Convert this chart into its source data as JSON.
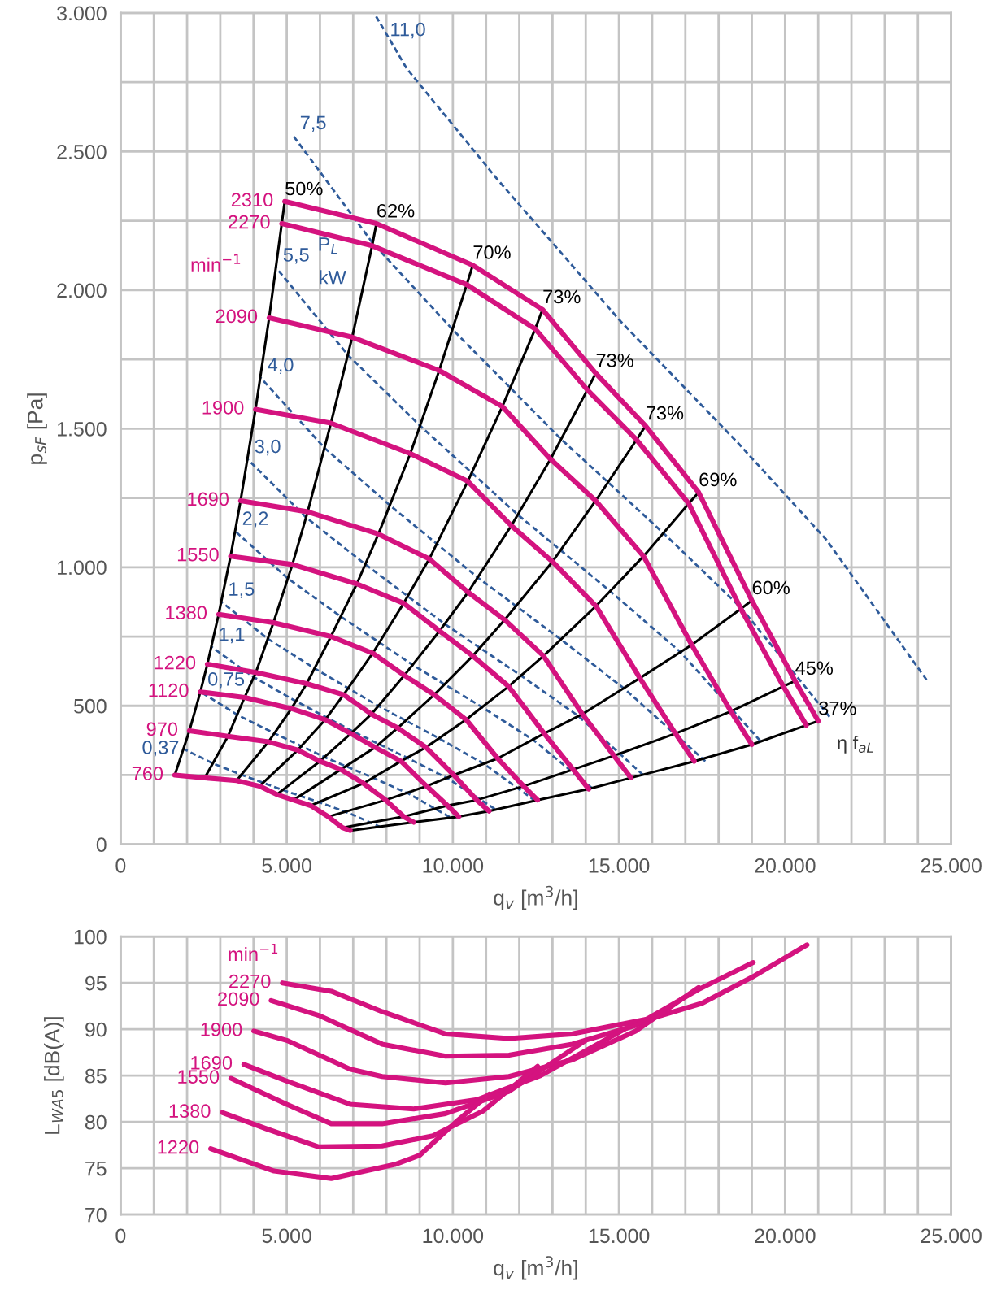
{
  "chart_data": [
    {
      "type": "line",
      "xlabel": "q$_{v}$ [m$^{3}$/h]",
      "ylabel": "p$_{sF}$ [Pa]",
      "xlim": [
        0,
        25000
      ],
      "ylim": [
        0,
        3000
      ],
      "xticks": [
        {
          "value": 0,
          "label": "0"
        },
        {
          "value": 1000,
          "label": null
        },
        {
          "value": 2000,
          "label": null
        },
        {
          "value": 3000,
          "label": null
        },
        {
          "value": 4000,
          "label": null
        },
        {
          "value": 5000,
          "label": "5.000"
        },
        {
          "value": 6000,
          "label": null
        },
        {
          "value": 7000,
          "label": null
        },
        {
          "value": 8000,
          "label": null
        },
        {
          "value": 9000,
          "label": null
        },
        {
          "value": 10000,
          "label": "10.000"
        },
        {
          "value": 11000,
          "label": null
        },
        {
          "value": 12000,
          "label": null
        },
        {
          "value": 13000,
          "label": null
        },
        {
          "value": 14000,
          "label": null
        },
        {
          "value": 15000,
          "label": "15.000"
        },
        {
          "value": 16000,
          "label": null
        },
        {
          "value": 17000,
          "label": null
        },
        {
          "value": 18000,
          "label": null
        },
        {
          "value": 19000,
          "label": null
        },
        {
          "value": 20000,
          "label": "20.000"
        },
        {
          "value": 21000,
          "label": null
        },
        {
          "value": 22000,
          "label": null
        },
        {
          "value": 23000,
          "label": null
        },
        {
          "value": 24000,
          "label": null
        },
        {
          "value": 25000,
          "label": "25.000"
        }
      ],
      "yticks": [
        {
          "value": 0,
          "label": "0"
        },
        {
          "value": 250,
          "label": null
        },
        {
          "value": 500,
          "label": "500"
        },
        {
          "value": 750,
          "label": null
        },
        {
          "value": 1000,
          "label": "1.000"
        },
        {
          "value": 1250,
          "label": null
        },
        {
          "value": 1500,
          "label": "1.500"
        },
        {
          "value": 1750,
          "label": null
        },
        {
          "value": 2000,
          "label": "2.000"
        },
        {
          "value": 2250,
          "label": null
        },
        {
          "value": 2500,
          "label": "2.500"
        },
        {
          "value": 2750,
          "label": null
        },
        {
          "value": 3000,
          "label": "3.000"
        }
      ],
      "grid": true,
      "annotations": [
        "min$^{−1}$",
        "P$_{L}$",
        "kW",
        "η f$_{aL}$"
      ],
      "series": [
        {
          "name": "11,0",
          "color": "#2f5b9a",
          "line_style": "dashed",
          "x": [
            24260,
            21240,
            18580,
            15060,
            11360,
            8610,
            7630
          ],
          "values": [
            594,
            1100,
            1449,
            1886,
            2397,
            2800,
            3000
          ]
        },
        {
          "name": "7,5",
          "color": "#2f5b9a",
          "line_style": "dashed",
          "x": [
            21340,
            18690,
            16350,
            13260,
            9990,
            7580,
            5190
          ],
          "values": [
            460,
            852,
            1122,
            1462,
            1858,
            2171,
            2558
          ]
        },
        {
          "name": "5,5",
          "color": "#2f5b9a",
          "line_style": "dashed",
          "x": [
            19250,
            16860,
            14750,
            11960,
            9010,
            6840,
            4680
          ],
          "values": [
            374,
            693,
            912,
            1189,
            1511,
            1766,
            2081
          ]
        },
        {
          "name": "4,0",
          "color": "#2f5b9a",
          "line_style": "dashed",
          "x": [
            17600,
            15170,
            13270,
            10760,
            8110,
            6150,
            4210
          ],
          "values": [
            300,
            561,
            738,
            962,
            1223,
            1429,
            1684
          ]
        },
        {
          "name": "3,0",
          "color": "#2f5b9a",
          "line_style": "dashed",
          "x": [
            15730,
            13780,
            12050,
            9770,
            7370,
            5590,
            3820
          ],
          "values": [
            250,
            463,
            609,
            794,
            1010,
            1179,
            1390
          ]
        },
        {
          "name": "2,2",
          "color": "#2f5b9a",
          "line_style": "dashed",
          "x": [
            14190,
            12430,
            10870,
            8810,
            6640,
            5040,
            3450
          ],
          "values": [
            203,
            376,
            496,
            646,
            821,
            959,
            1130
          ]
        },
        {
          "name": "1,5",
          "color": "#2f5b9a",
          "line_style": "dashed",
          "x": [
            12480,
            10930,
            9560,
            7750,
            5840,
            4430,
            3030
          ],
          "values": [
            157,
            291,
            384,
            500,
            635,
            742,
            875
          ]
        },
        {
          "name": "1,1",
          "color": "#2f5b9a",
          "line_style": "dashed",
          "x": [
            11260,
            9860,
            8630,
            7000,
            5270,
            4000,
            2740
          ],
          "values": [
            128,
            237,
            312,
            407,
            517,
            604,
            712
          ]
        },
        {
          "name": "0,75",
          "color": "#2f5b9a",
          "line_style": "dashed",
          "x": [
            9900,
            8670,
            7580,
            6150,
            4640,
            3520,
            2410
          ],
          "values": [
            99,
            183,
            241,
            314,
            400,
            467,
            550
          ]
        },
        {
          "name": "0,37",
          "color": "#2f5b9a",
          "line_style": "dashed",
          "x": [
            7830,
            6850,
            6000,
            4860,
            3660,
            2780,
            1900
          ],
          "values": [
            62,
            114,
            151,
            197,
            250,
            292,
            344
          ]
        },
        {
          "name": "50%",
          "color": "#000000",
          "line_style": "solid",
          "x": [
            1630,
            2070,
            2400,
            2610,
            2950,
            3310,
            3610,
            4060,
            4470,
            4850,
            4940
          ],
          "values": [
            250,
            410,
            550,
            650,
            830,
            1040,
            1240,
            1570,
            1900,
            2240,
            2320
          ]
        },
        {
          "name": "62%",
          "color": "#000000",
          "line_style": "solid",
          "x": [
            2530,
            3230,
            3730,
            4070,
            4600,
            5170,
            5630,
            6330,
            6970,
            7570,
            7700
          ],
          "values": [
            240,
            390,
            530,
            620,
            800,
            1010,
            1200,
            1520,
            1830,
            2160,
            2240
          ]
        },
        {
          "name": "70%",
          "color": "#000000",
          "line_style": "solid",
          "x": [
            3490,
            4450,
            5140,
            5600,
            6330,
            7110,
            7760,
            8720,
            9590,
            10420,
            10600
          ],
          "values": [
            230,
            370,
            490,
            580,
            750,
            940,
            1120,
            1410,
            1710,
            2020,
            2090
          ]
        },
        {
          "name": "73%",
          "color": "#000000",
          "line_style": "solid",
          "x": [
            4180,
            5330,
            6160,
            6710,
            7590,
            8520,
            9290,
            10450,
            11490,
            12480,
            12700
          ],
          "values": [
            210,
            340,
            450,
            540,
            690,
            870,
            1030,
            1310,
            1580,
            1860,
            1930
          ]
        },
        {
          "name": "73%",
          "color": "#000000",
          "line_style": "solid",
          "x": [
            4700,
            6000,
            6930,
            7550,
            8540,
            9600,
            10460,
            11760,
            12940,
            14050,
            14300
          ],
          "values": [
            180,
            300,
            400,
            470,
            610,
            770,
            910,
            1150,
            1390,
            1640,
            1700
          ]
        },
        {
          "name": "73%",
          "color": "#000000",
          "line_style": "solid",
          "x": [
            5200,
            6630,
            7660,
            8340,
            9440,
            10600,
            11560,
            13000,
            14300,
            15530,
            15800
          ],
          "values": [
            160,
            270,
            350,
            420,
            540,
            680,
            810,
            1020,
            1240,
            1460,
            1510
          ]
        },
        {
          "name": "69%",
          "color": "#000000",
          "line_style": "solid",
          "x": [
            5720,
            7310,
            8440,
            9190,
            10400,
            11680,
            12730,
            14310,
            15740,
            17100,
            17400
          ],
          "values": [
            140,
            220,
            300,
            350,
            450,
            570,
            680,
            860,
            1040,
            1230,
            1270
          ]
        },
        {
          "name": "60%",
          "color": "#000000",
          "line_style": "solid",
          "x": [
            6250,
            7980,
            9210,
            10030,
            11350,
            12750,
            13900,
            15630,
            17190,
            18670,
            19000
          ],
          "values": [
            100,
            160,
            210,
            250,
            310,
            400,
            470,
            600,
            720,
            850,
            880
          ]
        },
        {
          "name": "45%",
          "color": "#000000",
          "line_style": "solid",
          "x": [
            6680,
            8520,
            9840,
            10720,
            12130,
            13620,
            14850,
            16700,
            18370,
            19950,
            20300
          ],
          "values": [
            60,
            100,
            140,
            160,
            210,
            270,
            320,
            400,
            480,
            570,
            590
          ]
        },
        {
          "name": "37%",
          "color": "#000000",
          "line_style": "solid",
          "x": [
            6910,
            8820,
            10180,
            11090,
            12550,
            14090,
            15360,
            17270,
            19000,
            20640,
            21000
          ],
          "values": [
            50,
            80,
            100,
            120,
            160,
            200,
            240,
            300,
            360,
            430,
            445
          ]
        },
        {
          "name": "2310",
          "color": "#d4137f",
          "line_style": "solid",
          "x": [
            21000,
            20300,
            19000,
            17400,
            15800,
            14300,
            12700,
            10600,
            7700,
            4940
          ],
          "values": [
            445,
            590,
            880,
            1270,
            1510,
            1700,
            1930,
            2090,
            2240,
            2320
          ]
        },
        {
          "name": "2270",
          "color": "#d4137f",
          "line_style": "solid",
          "x": [
            20640,
            19950,
            18670,
            17100,
            15530,
            14050,
            12480,
            10420,
            7570,
            4850
          ],
          "values": [
            430,
            570,
            850,
            1230,
            1460,
            1640,
            1860,
            2020,
            2160,
            2240
          ]
        },
        {
          "name": "2090",
          "color": "#d4137f",
          "line_style": "solid",
          "x": [
            19000,
            18370,
            17190,
            15740,
            14300,
            12940,
            11490,
            9590,
            6970,
            4470
          ],
          "values": [
            360,
            480,
            720,
            1040,
            1240,
            1390,
            1580,
            1710,
            1830,
            1900
          ]
        },
        {
          "name": "1900",
          "color": "#d4137f",
          "line_style": "solid",
          "x": [
            17270,
            16700,
            15630,
            14310,
            13000,
            11760,
            10450,
            8720,
            6330,
            4060
          ],
          "values": [
            300,
            400,
            600,
            860,
            1020,
            1150,
            1310,
            1410,
            1520,
            1570
          ]
        },
        {
          "name": "1690",
          "color": "#d4137f",
          "line_style": "solid",
          "x": [
            15360,
            14850,
            13900,
            12730,
            11560,
            10460,
            9290,
            7760,
            5630,
            3610
          ],
          "values": [
            240,
            320,
            470,
            680,
            810,
            910,
            1030,
            1120,
            1200,
            1240
          ]
        },
        {
          "name": "1550",
          "color": "#d4137f",
          "line_style": "solid",
          "x": [
            14090,
            13620,
            12750,
            11680,
            10600,
            9600,
            8520,
            7110,
            5170,
            3310
          ],
          "values": [
            200,
            270,
            400,
            570,
            680,
            770,
            870,
            940,
            1010,
            1040
          ]
        },
        {
          "name": "1380",
          "color": "#d4137f",
          "line_style": "solid",
          "x": [
            12550,
            12130,
            11350,
            10400,
            9440,
            8540,
            7590,
            6330,
            4600,
            2950
          ],
          "values": [
            160,
            210,
            310,
            450,
            540,
            610,
            690,
            750,
            800,
            830
          ]
        },
        {
          "name": "1220",
          "color": "#d4137f",
          "line_style": "solid",
          "x": [
            11090,
            10720,
            10030,
            9190,
            8340,
            7550,
            6710,
            5600,
            4070,
            2610
          ],
          "values": [
            120,
            160,
            250,
            350,
            420,
            470,
            540,
            580,
            620,
            650
          ]
        },
        {
          "name": "1120",
          "color": "#d4137f",
          "line_style": "solid",
          "x": [
            10180,
            9840,
            9210,
            8440,
            7660,
            6930,
            6160,
            5140,
            3730,
            2400
          ],
          "values": [
            100,
            140,
            210,
            300,
            350,
            400,
            450,
            490,
            530,
            550
          ]
        },
        {
          "name": "970",
          "color": "#d4137f",
          "line_style": "solid",
          "x": [
            8820,
            8520,
            7980,
            7310,
            6630,
            6000,
            5330,
            4450,
            3230,
            2070
          ],
          "values": [
            80,
            100,
            160,
            220,
            270,
            300,
            340,
            370,
            390,
            410
          ]
        },
        {
          "name": "760",
          "color": "#d4137f",
          "line_style": "solid",
          "x": [
            6910,
            6680,
            6250,
            5720,
            5200,
            4700,
            4180,
            3490,
            2530,
            1630
          ],
          "values": [
            50,
            60,
            100,
            140,
            160,
            180,
            210,
            230,
            240,
            250
          ]
        }
      ]
    },
    {
      "type": "line",
      "xlabel": "q$_{v}$ [m$^{3}$/h]",
      "ylabel": "L$_{WA5}$ [dB(A)]",
      "xlim": [
        0,
        25000
      ],
      "ylim": [
        70,
        100
      ],
      "xticks": [
        {
          "value": 0,
          "label": "0"
        },
        {
          "value": 1000,
          "label": null
        },
        {
          "value": 2000,
          "label": null
        },
        {
          "value": 3000,
          "label": null
        },
        {
          "value": 4000,
          "label": null
        },
        {
          "value": 5000,
          "label": "5.000"
        },
        {
          "value": 6000,
          "label": null
        },
        {
          "value": 7000,
          "label": null
        },
        {
          "value": 8000,
          "label": null
        },
        {
          "value": 9000,
          "label": null
        },
        {
          "value": 10000,
          "label": "10.000"
        },
        {
          "value": 11000,
          "label": null
        },
        {
          "value": 12000,
          "label": null
        },
        {
          "value": 13000,
          "label": null
        },
        {
          "value": 14000,
          "label": null
        },
        {
          "value": 15000,
          "label": "15.000"
        },
        {
          "value": 16000,
          "label": null
        },
        {
          "value": 17000,
          "label": null
        },
        {
          "value": 18000,
          "label": null
        },
        {
          "value": 19000,
          "label": null
        },
        {
          "value": 20000,
          "label": "20.000"
        },
        {
          "value": 21000,
          "label": null
        },
        {
          "value": 22000,
          "label": null
        },
        {
          "value": 23000,
          "label": null
        },
        {
          "value": 24000,
          "label": null
        },
        {
          "value": 25000,
          "label": "25.000"
        }
      ],
      "yticks": [
        70,
        75,
        80,
        85,
        90,
        95,
        100
      ],
      "grid": true,
      "annotations": [
        "min$^{−1}$"
      ],
      "series": [
        {
          "name": "2270",
          "color": "#d4137f",
          "line_style": "solid",
          "x": [
            20660,
            19000,
            17500,
            16000,
            13600,
            11690,
            9780,
            7870,
            6340,
            4870
          ],
          "values": [
            99.1,
            95.6,
            92.8,
            91.2,
            89.5,
            89.0,
            89.5,
            91.9,
            94.1,
            95.0
          ]
        },
        {
          "name": "2090",
          "color": "#d4137f",
          "line_style": "solid",
          "x": [
            19040,
            17400,
            15500,
            13600,
            11690,
            9780,
            7870,
            5960,
            4530
          ],
          "values": [
            97.2,
            94.3,
            90.4,
            88.4,
            87.2,
            87.1,
            88.4,
            91.5,
            93.1
          ]
        },
        {
          "name": "1900",
          "color": "#d4137f",
          "line_style": "solid",
          "x": [
            17400,
            15500,
            13600,
            11690,
            9780,
            7870,
            6910,
            5000,
            4010
          ],
          "values": [
            94.5,
            89.8,
            86.7,
            84.9,
            84.2,
            84.9,
            85.7,
            88.8,
            89.8
          ]
        },
        {
          "name": "1690",
          "color": "#d4137f",
          "line_style": "solid",
          "x": [
            15360,
            14560,
            12640,
            10730,
            8820,
            6910,
            5000,
            3710
          ],
          "values": [
            90.4,
            88.8,
            85.0,
            82.4,
            81.4,
            81.9,
            84.4,
            86.2
          ]
        },
        {
          "name": "1550",
          "color": "#d4137f",
          "line_style": "solid",
          "x": [
            14000,
            11690,
            9780,
            7870,
            6340,
            5000,
            3320
          ],
          "values": [
            88.8,
            83.3,
            80.9,
            79.8,
            79.8,
            81.9,
            84.7
          ]
        },
        {
          "name": "1380",
          "color": "#d4137f",
          "line_style": "solid",
          "x": [
            12550,
            10920,
            9400,
            7870,
            5960,
            4430,
            3060
          ],
          "values": [
            86.0,
            81.2,
            78.5,
            77.4,
            77.3,
            79.2,
            81.0
          ]
        },
        {
          "name": "1220",
          "color": "#d4137f",
          "line_style": "solid",
          "x": [
            11100,
            10160,
            9000,
            8250,
            6340,
            4620,
            2710
          ],
          "values": [
            83.0,
            80.2,
            76.4,
            75.4,
            73.9,
            74.7,
            77.1
          ]
        }
      ]
    }
  ]
}
